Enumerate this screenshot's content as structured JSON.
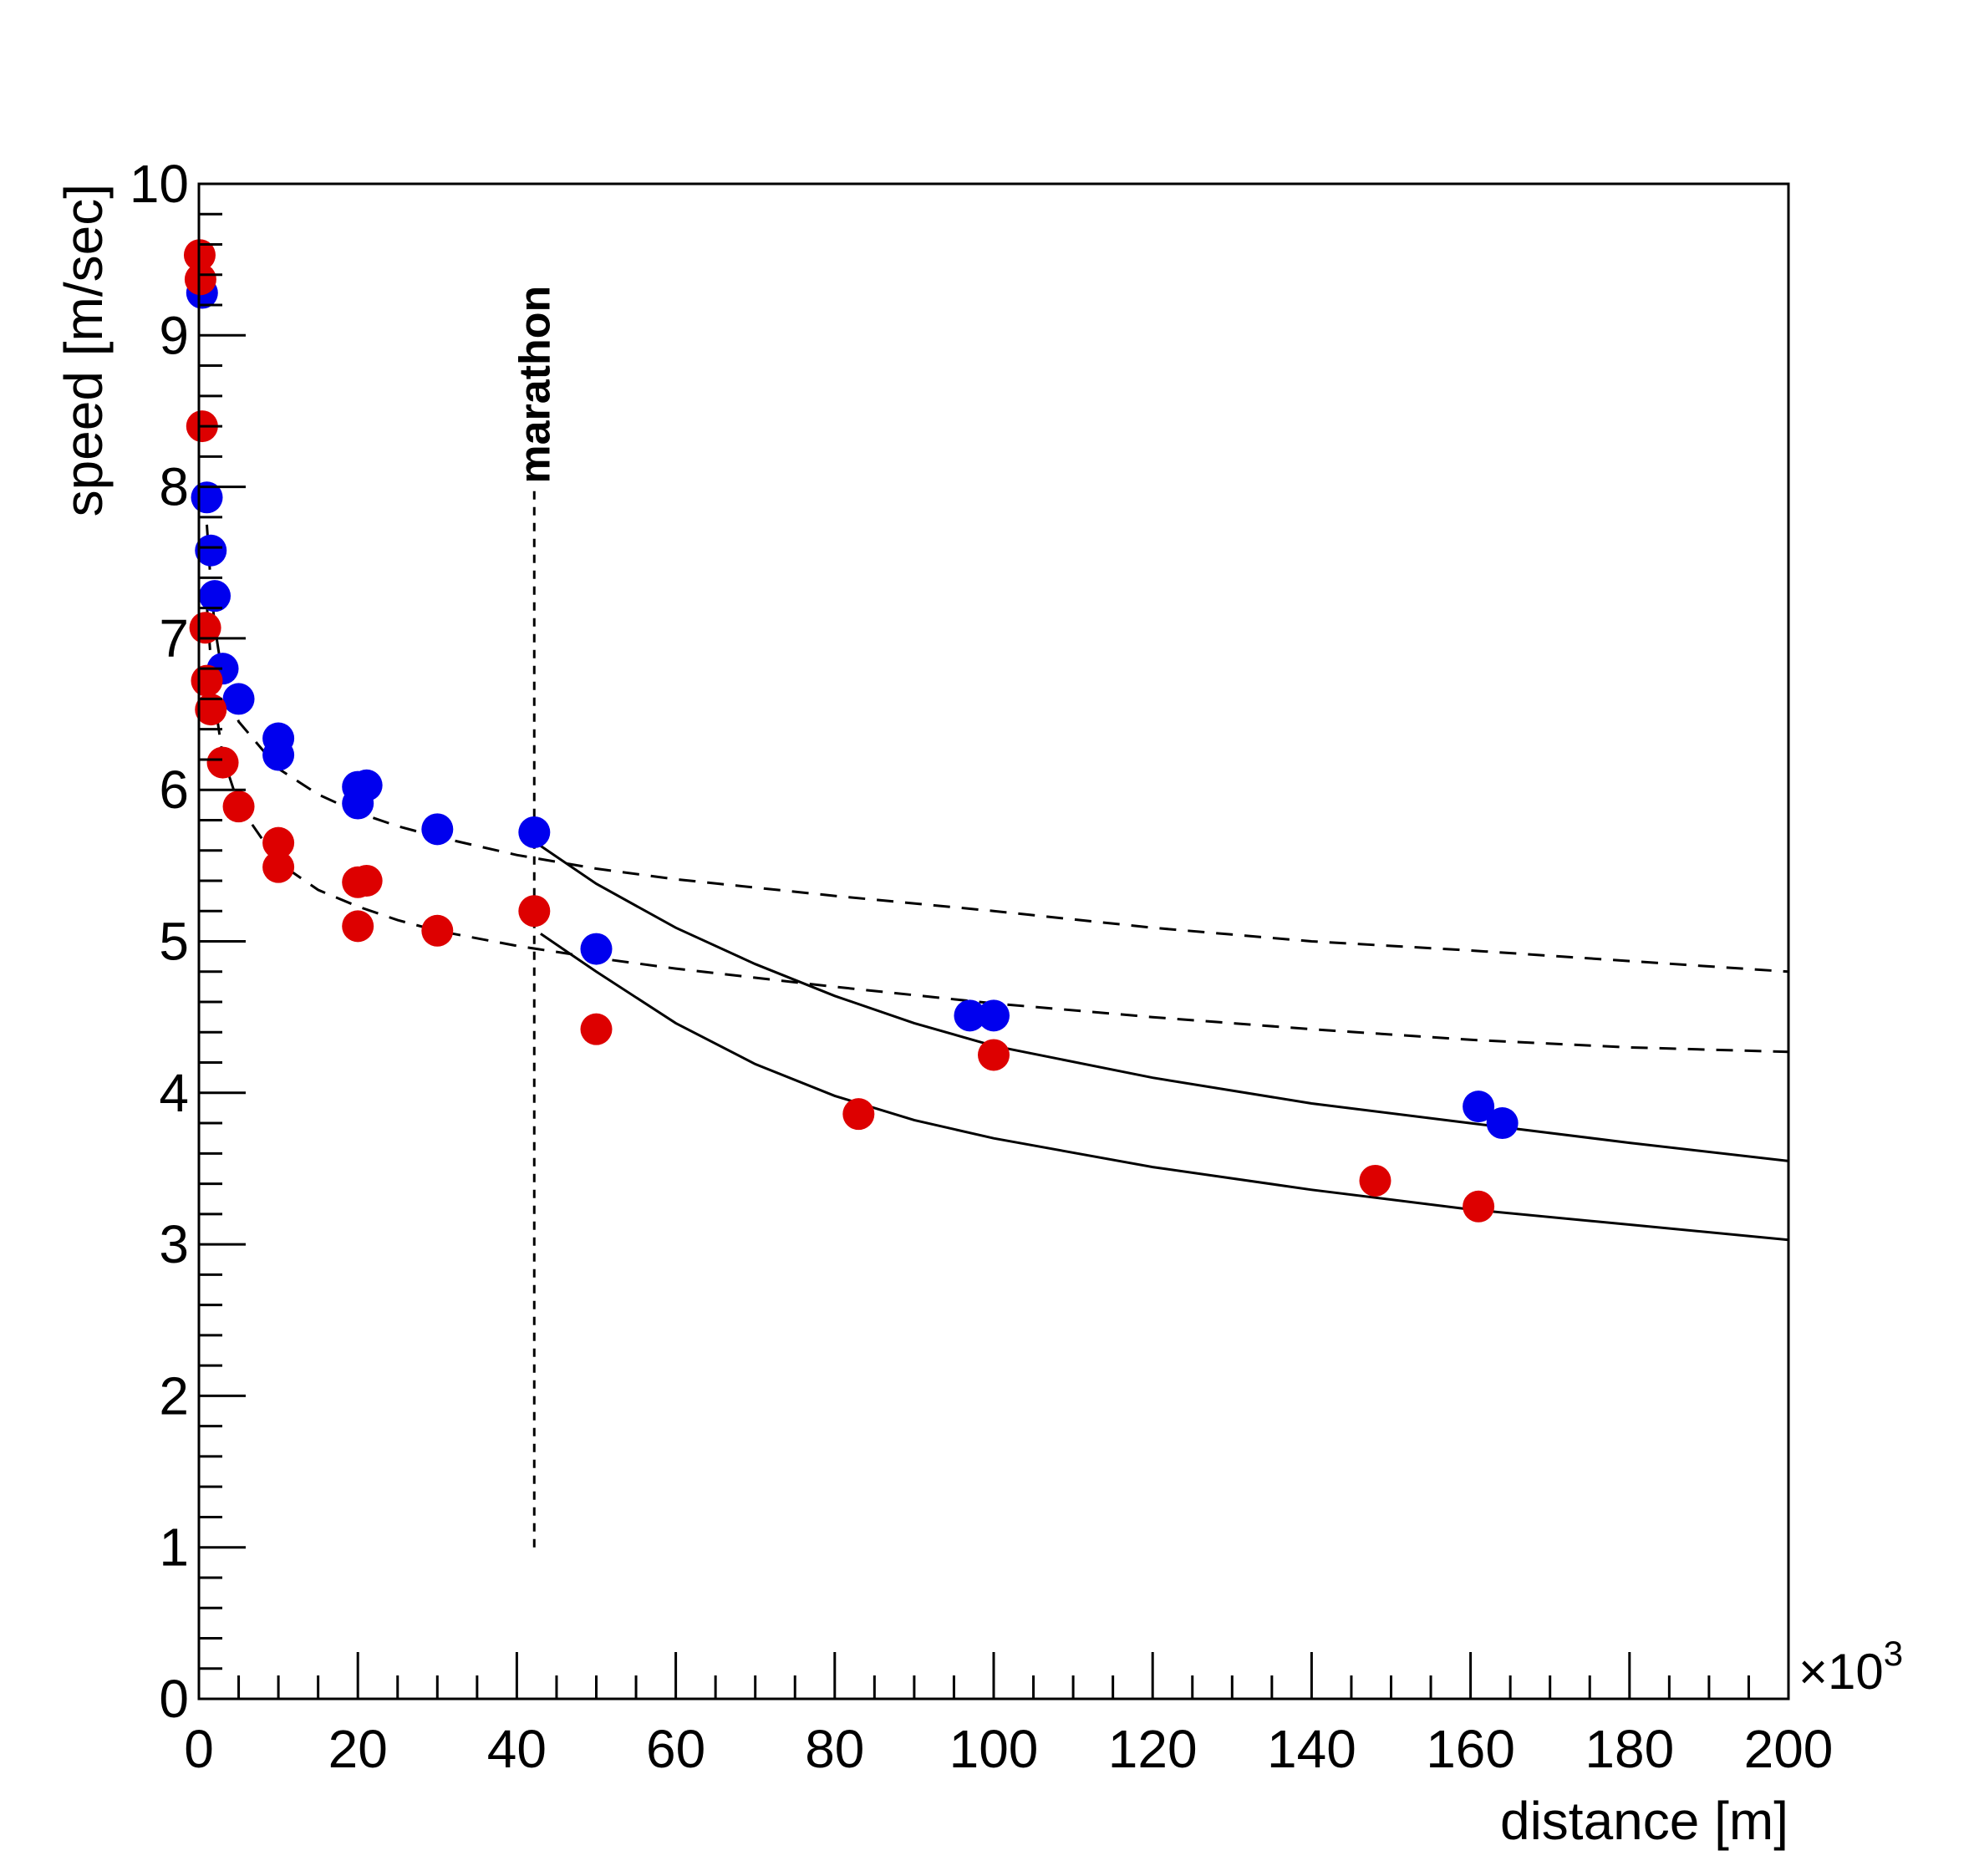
{
  "chart_data": {
    "type": "scatter",
    "title": "",
    "xlabel": "distance [m]",
    "ylabel": "speed [m/sec]",
    "x_multiplier": "×10",
    "x_multiplier_exp": "3",
    "xlim": [
      0,
      200
    ],
    "ylim": [
      0,
      10
    ],
    "x_unit_scale": 1000,
    "x_ticks": [
      "0",
      "20",
      "40",
      "60",
      "80",
      "100",
      "120",
      "140",
      "160",
      "180",
      "200"
    ],
    "y_ticks": [
      "0",
      "1",
      "2",
      "3",
      "4",
      "5",
      "6",
      "7",
      "8",
      "9",
      "10"
    ],
    "grid": false,
    "annotations": [
      {
        "text": "marathon",
        "x": 42.195,
        "y_from": 1.0,
        "y_to": 8.0
      }
    ],
    "series": [
      {
        "color": "#0000ee",
        "points": [
          {
            "x": 0.4,
            "y": 9.28
          },
          {
            "x": 1.0,
            "y": 7.93
          },
          {
            "x": 1.5,
            "y": 7.58
          },
          {
            "x": 2.0,
            "y": 7.28
          },
          {
            "x": 3.0,
            "y": 6.8
          },
          {
            "x": 5.0,
            "y": 6.6
          },
          {
            "x": 10.0,
            "y": 6.34
          },
          {
            "x": 10.0,
            "y": 6.23
          },
          {
            "x": 20.0,
            "y": 6.02
          },
          {
            "x": 21.1,
            "y": 6.03
          },
          {
            "x": 20.0,
            "y": 5.91
          },
          {
            "x": 30.0,
            "y": 5.74
          },
          {
            "x": 42.2,
            "y": 5.72
          },
          {
            "x": 50.0,
            "y": 4.95
          },
          {
            "x": 97.0,
            "y": 4.51
          },
          {
            "x": 100.0,
            "y": 4.51
          },
          {
            "x": 161.0,
            "y": 3.91
          },
          {
            "x": 164.0,
            "y": 3.8
          }
        ]
      },
      {
        "color": "#dd0000",
        "points": [
          {
            "x": 0.1,
            "y": 9.53
          },
          {
            "x": 0.2,
            "y": 9.37
          },
          {
            "x": 0.4,
            "y": 8.4
          },
          {
            "x": 0.8,
            "y": 7.07
          },
          {
            "x": 1.0,
            "y": 6.72
          },
          {
            "x": 1.5,
            "y": 6.53
          },
          {
            "x": 3.0,
            "y": 6.18
          },
          {
            "x": 5.0,
            "y": 5.89
          },
          {
            "x": 10.0,
            "y": 5.65
          },
          {
            "x": 10.0,
            "y": 5.49
          },
          {
            "x": 20.0,
            "y": 5.39
          },
          {
            "x": 21.1,
            "y": 5.4
          },
          {
            "x": 20.0,
            "y": 5.1
          },
          {
            "x": 30.0,
            "y": 5.07
          },
          {
            "x": 42.2,
            "y": 5.2
          },
          {
            "x": 50.0,
            "y": 4.42
          },
          {
            "x": 83.0,
            "y": 3.86
          },
          {
            "x": 100.0,
            "y": 4.25
          },
          {
            "x": 148.0,
            "y": 3.42
          },
          {
            "x": 161.0,
            "y": 3.25
          }
        ]
      }
    ],
    "curves": [
      {
        "style": "dashed",
        "points": [
          [
            1.0,
            7.75
          ],
          [
            1.5,
            7.35
          ],
          [
            2,
            7.08
          ],
          [
            3,
            6.74
          ],
          [
            5,
            6.45
          ],
          [
            10,
            6.14
          ],
          [
            15,
            5.97
          ],
          [
            20,
            5.85
          ],
          [
            25,
            5.76
          ],
          [
            30,
            5.69
          ],
          [
            40,
            5.57
          ],
          [
            50,
            5.48
          ],
          [
            60,
            5.41
          ],
          [
            80,
            5.3
          ],
          [
            100,
            5.2
          ],
          [
            120,
            5.09
          ],
          [
            140,
            5.0
          ],
          [
            160,
            4.94
          ],
          [
            180,
            4.87
          ],
          [
            200,
            4.8
          ]
        ]
      },
      {
        "style": "dashed",
        "points": [
          [
            1.0,
            7.22
          ],
          [
            1.5,
            6.85
          ],
          [
            2,
            6.58
          ],
          [
            3,
            6.22
          ],
          [
            5,
            5.9
          ],
          [
            10,
            5.52
          ],
          [
            15,
            5.34
          ],
          [
            20,
            5.23
          ],
          [
            25,
            5.14
          ],
          [
            30,
            5.07
          ],
          [
            40,
            4.97
          ],
          [
            50,
            4.89
          ],
          [
            60,
            4.82
          ],
          [
            80,
            4.7
          ],
          [
            100,
            4.59
          ],
          [
            120,
            4.5
          ],
          [
            140,
            4.42
          ],
          [
            160,
            4.35
          ],
          [
            180,
            4.3
          ],
          [
            200,
            4.27
          ]
        ]
      },
      {
        "style": "solid",
        "points": [
          [
            43,
            5.63
          ],
          [
            50,
            5.38
          ],
          [
            60,
            5.09
          ],
          [
            70,
            4.85
          ],
          [
            80,
            4.64
          ],
          [
            90,
            4.46
          ],
          [
            100,
            4.31
          ],
          [
            120,
            4.1
          ],
          [
            140,
            3.93
          ],
          [
            160,
            3.8
          ],
          [
            180,
            3.67
          ],
          [
            200,
            3.55
          ]
        ]
      },
      {
        "style": "solid",
        "points": [
          [
            43,
            5.05
          ],
          [
            50,
            4.8
          ],
          [
            60,
            4.46
          ],
          [
            70,
            4.19
          ],
          [
            80,
            3.98
          ],
          [
            90,
            3.82
          ],
          [
            100,
            3.7
          ],
          [
            120,
            3.51
          ],
          [
            140,
            3.36
          ],
          [
            160,
            3.23
          ],
          [
            180,
            3.13
          ],
          [
            200,
            3.03
          ]
        ]
      }
    ]
  }
}
